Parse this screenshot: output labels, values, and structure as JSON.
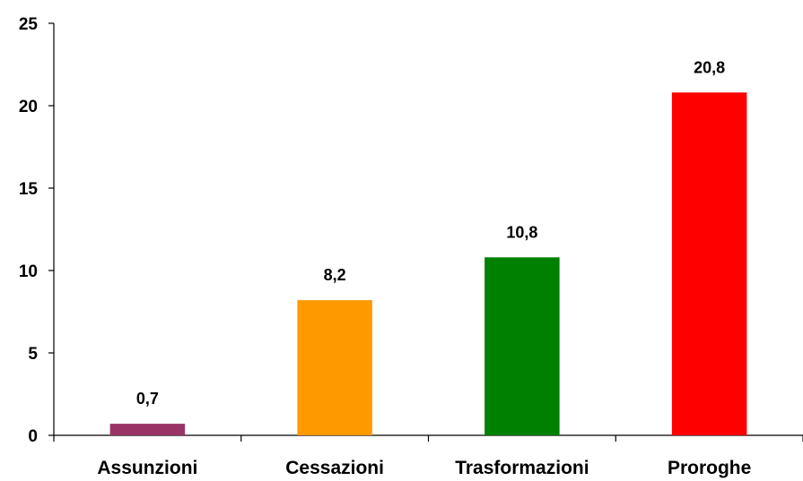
{
  "chart_data": {
    "type": "bar",
    "categories": [
      "Assunzioni",
      "Cessazioni",
      "Trasformazioni",
      "Proroghe"
    ],
    "values": [
      0.7,
      8.2,
      10.8,
      20.8
    ],
    "data_labels": [
      "0,7",
      "8,2",
      "10,8",
      "20,8"
    ],
    "colors": [
      "#993366",
      "#ff9900",
      "#008000",
      "#ff0000"
    ],
    "ylim": [
      0,
      25
    ],
    "yticks": [
      0,
      5,
      10,
      15,
      20,
      25
    ],
    "ytick_labels": [
      "0",
      "5",
      "10",
      "15",
      "20",
      "25"
    ],
    "grid": false,
    "legend": "none"
  }
}
